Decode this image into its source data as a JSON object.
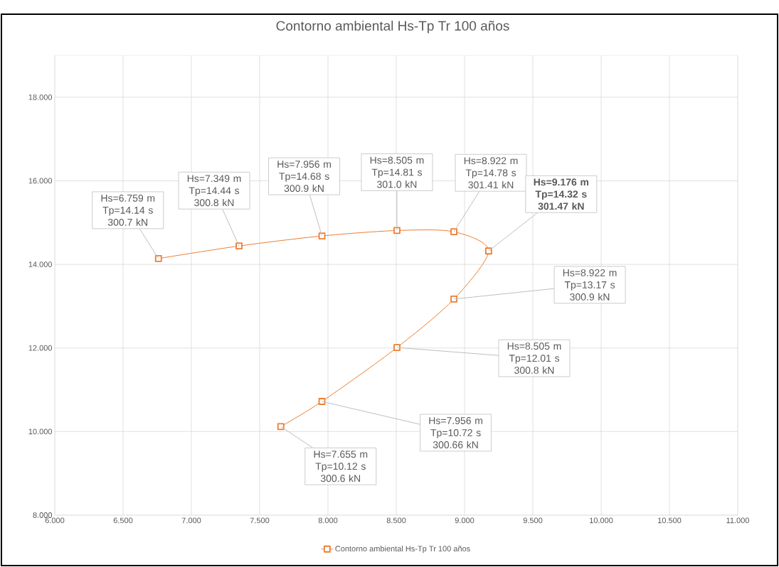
{
  "chart_data": {
    "type": "line",
    "title": "Contorno ambiental Hs-Tp Tr 100 años",
    "series": [
      {
        "name": "Contorno ambiental Hs-Tp Tr 100 años",
        "color": "#ed7d31",
        "x": [
          6.759,
          7.349,
          7.956,
          8.505,
          8.922,
          9.176,
          8.922,
          8.505,
          7.956,
          7.655
        ],
        "values": [
          14.14,
          14.44,
          14.68,
          14.81,
          14.78,
          14.32,
          13.17,
          12.01,
          10.72,
          10.12
        ]
      }
    ],
    "xlim": [
      6,
      11
    ],
    "ylim": [
      8,
      19
    ],
    "xticks": [
      {
        "value": 6,
        "label": "6.000"
      },
      {
        "value": 6.5,
        "label": "6.500"
      },
      {
        "value": 7,
        "label": "7.000"
      },
      {
        "value": 7.5,
        "label": "7.500"
      },
      {
        "value": 8,
        "label": "8.000"
      },
      {
        "value": 8.5,
        "label": "8.500"
      },
      {
        "value": 9,
        "label": "9.000"
      },
      {
        "value": 9.5,
        "label": "9.500"
      },
      {
        "value": 10,
        "label": "10.000"
      },
      {
        "value": 10.5,
        "label": "10.500"
      },
      {
        "value": 11,
        "label": "11.000"
      }
    ],
    "yticks": [
      {
        "value": 8,
        "label": "8.000"
      },
      {
        "value": 10,
        "label": "10.000"
      },
      {
        "value": 12,
        "label": "12.000"
      },
      {
        "value": 14,
        "label": "14.000"
      },
      {
        "value": 16,
        "label": "16.000"
      },
      {
        "value": 18,
        "label": "18.000"
      }
    ],
    "grid": true,
    "legend": "bottom",
    "marker": "square",
    "line_style": "solid",
    "annotations": [
      {
        "text": "Hs=6.759 m Tp=14.14 s 300.7 kN",
        "x": 6.759,
        "y": 14.14
      },
      {
        "text": "Hs=7.349 m Tp=14.44 s 300.8 kN",
        "x": 7.349,
        "y": 14.44
      },
      {
        "text": "Hs=7.956 m Tp=14.68 s 300.9 kN",
        "x": 7.956,
        "y": 14.68
      },
      {
        "text": "Hs=8.505 m Tp=14.81 s 301.0 kN",
        "x": 8.505,
        "y": 14.81
      },
      {
        "text": "Hs=8.922 m Tp=14.78 s 301.41 kN",
        "x": 8.922,
        "y": 14.78
      },
      {
        "text": "**Hs=9.176 m Tp=14.32 s 301.47 kN**",
        "x": 9.176,
        "y": 14.32
      },
      {
        "text": "Hs=8.922 m Tp=13.17 s 300.9 kN",
        "x": 8.922,
        "y": 13.17
      },
      {
        "text": "Hs=8.505 m Tp=12.01 s 300.8 kN",
        "x": 8.505,
        "y": 12.01
      },
      {
        "text": "Hs=7.956 m Tp=10.72 s 300.66 kN",
        "x": 7.956,
        "y": 10.72
      },
      {
        "text": "Hs=7.655 m Tp=10.12 s 300.6 kN",
        "x": 7.655,
        "y": 10.12
      }
    ]
  }
}
